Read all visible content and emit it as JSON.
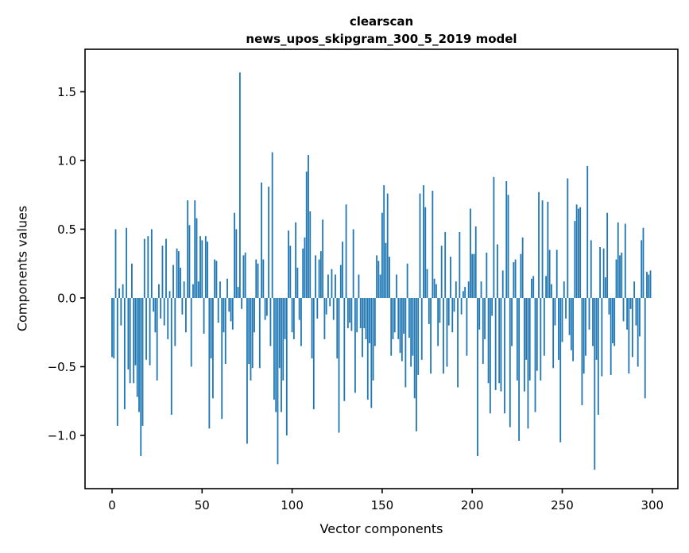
{
  "figure": {
    "background": "#ffffff",
    "text_color": "#000000",
    "spine_color": "#000000"
  },
  "chart_data": {
    "type": "bar",
    "title_line1": "clearscan",
    "title_line2": "news_upos_skipgram_300_5_2019 model",
    "xlabel": "Vector components",
    "ylabel": "Components values",
    "bar_color": "#1f77b4",
    "n_components": 300,
    "xticks": [
      0,
      50,
      100,
      150,
      200,
      250,
      300
    ],
    "xtick_labels": [
      "0",
      "50",
      "100",
      "150",
      "200",
      "250",
      "300"
    ],
    "yticks": [
      1.5,
      1.0,
      0.5,
      0.0,
      -0.5,
      -1.0
    ],
    "ytick_labels": [
      "1.5",
      "1.0",
      "0.5",
      "0.0",
      "−0.5",
      "−1.0"
    ],
    "xlim": [
      -15.4,
      314.4
    ],
    "ylim": [
      -1.39,
      1.81
    ],
    "grid": false,
    "legend": null,
    "values": [
      -0.43,
      -0.44,
      0.5,
      -0.93,
      0.07,
      -0.2,
      0.1,
      -0.81,
      0.51,
      -0.52,
      -0.62,
      0.25,
      -0.62,
      -0.49,
      -0.72,
      -0.83,
      -1.15,
      -0.93,
      0.43,
      -0.45,
      0.45,
      -0.49,
      0.5,
      -0.1,
      -0.25,
      -0.6,
      0.1,
      -0.15,
      0.38,
      -0.2,
      0.43,
      -0.3,
      0.05,
      -0.85,
      0.24,
      -0.35,
      0.36,
      0.34,
      0.22,
      -0.12,
      0.12,
      -0.25,
      0.71,
      0.53,
      -0.5,
      0.1,
      0.71,
      0.58,
      0.12,
      0.45,
      0.42,
      -0.26,
      0.45,
      0.41,
      -0.95,
      -0.44,
      -0.73,
      0.28,
      0.27,
      -0.18,
      0.12,
      -0.88,
      -0.25,
      -0.48,
      0.14,
      -0.1,
      -0.17,
      -0.23,
      0.62,
      0.5,
      0.08,
      1.64,
      -0.08,
      0.31,
      0.33,
      -1.06,
      -0.48,
      -0.6,
      -0.51,
      -0.25,
      0.28,
      0.25,
      -0.51,
      0.84,
      0.28,
      -0.16,
      -0.13,
      0.81,
      -0.35,
      1.06,
      -0.74,
      -0.83,
      -1.21,
      -0.51,
      -0.83,
      -0.6,
      -0.3,
      -1.0,
      0.49,
      0.38,
      -0.25,
      -0.3,
      0.55,
      0.22,
      -0.16,
      -0.35,
      0.36,
      0.44,
      0.92,
      1.04,
      0.63,
      -0.44,
      -0.81,
      0.31,
      -0.15,
      0.28,
      0.34,
      0.57,
      -0.3,
      -0.12,
      0.17,
      -0.06,
      0.21,
      -0.16,
      0.17,
      -0.44,
      -0.98,
      0.24,
      0.41,
      -0.75,
      0.68,
      -0.22,
      -0.18,
      -0.24,
      0.5,
      -0.69,
      -0.25,
      0.17,
      -0.22,
      -0.43,
      -0.22,
      -0.3,
      -0.74,
      -0.33,
      -0.8,
      -0.6,
      -0.35,
      0.31,
      0.27,
      0.17,
      0.62,
      0.82,
      0.4,
      0.76,
      0.3,
      -0.42,
      -0.3,
      -0.25,
      0.17,
      -0.3,
      -0.4,
      -0.46,
      -0.26,
      -0.65,
      0.25,
      -0.29,
      -0.5,
      -0.42,
      -0.73,
      -0.97,
      -0.56,
      0.76,
      -0.45,
      0.82,
      0.66,
      0.21,
      -0.19,
      -0.55,
      0.78,
      0.14,
      0.1,
      -0.35,
      -0.18,
      0.38,
      -0.55,
      0.48,
      -0.5,
      -0.2,
      0.3,
      -0.25,
      -0.1,
      0.12,
      -0.65,
      0.48,
      -0.12,
      0.05,
      0.08,
      -0.42,
      0.12,
      0.65,
      0.32,
      0.32,
      0.52,
      -1.15,
      -0.23,
      0.12,
      -0.48,
      -0.3,
      0.33,
      -0.62,
      -0.84,
      -0.13,
      0.88,
      -0.67,
      0.39,
      -0.62,
      -0.68,
      0.2,
      -0.84,
      0.85,
      0.75,
      -0.94,
      -0.35,
      0.26,
      0.28,
      -0.6,
      -1.04,
      0.32,
      0.44,
      -0.68,
      -0.45,
      -0.95,
      -0.6,
      0.14,
      0.16,
      -0.83,
      -0.53,
      0.77,
      -0.6,
      0.71,
      -0.42,
      0.16,
      0.7,
      0.35,
      0.1,
      -0.51,
      -0.2,
      0.35,
      -0.45,
      -1.05,
      -0.32,
      0.12,
      -0.15,
      0.87,
      -0.27,
      -0.38,
      -0.46,
      0.56,
      0.68,
      0.65,
      0.66,
      -0.78,
      -0.55,
      -0.42,
      0.96,
      -0.23,
      0.42,
      -0.35,
      -1.25,
      -0.45,
      -0.85,
      0.37,
      -0.57,
      0.36,
      0.15,
      0.62,
      -0.12,
      -0.56,
      -0.33,
      -0.35,
      0.28,
      0.55,
      0.31,
      0.33,
      -0.17,
      0.54,
      -0.23,
      -0.55,
      -0.08,
      -0.43,
      0.12,
      -0.2,
      -0.5,
      -0.28,
      0.42,
      0.51,
      -0.73,
      0.19,
      0.17,
      0.2
    ]
  }
}
